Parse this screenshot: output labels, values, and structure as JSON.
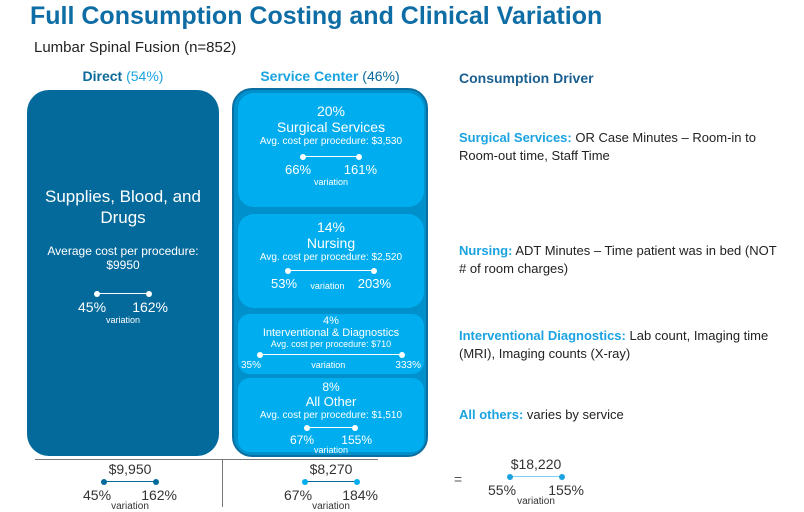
{
  "title": "Full Consumption Costing and Clinical Variation",
  "subtitle": "Lumbar Spinal Fusion (n=852)",
  "colors": {
    "title": "#0f6da5",
    "direct": "#036a9b",
    "service_center": "#00aeef",
    "driver_label": "#1aa3e0"
  },
  "direct": {
    "label": "Direct",
    "pct": "(54%)",
    "category": "Supplies, Blood, and Drugs",
    "cost_label": "Average cost per procedure:",
    "cost": "$9950",
    "low": "45%",
    "high": "162%",
    "variation": "variation"
  },
  "service_center": {
    "label": "Service Center",
    "pct": "(46%)",
    "blocks": [
      {
        "pct": "20%",
        "name": "Surgical Services",
        "cost": "Avg. cost per procedure: $3,530",
        "low": "66%",
        "high": "161%",
        "variation": "variation"
      },
      {
        "pct": "14%",
        "name": "Nursing",
        "cost": "Avg. cost per procedure: $2,520",
        "low": "53%",
        "high": "203%",
        "variation": "variation"
      },
      {
        "pct": "4%",
        "name": "Interventional & Diagnostics",
        "cost": "Avg. cost per procedure: $710",
        "low": "35%",
        "high": "333%",
        "variation": "variation"
      },
      {
        "pct": "8%",
        "name": "All Other",
        "cost": "Avg. cost per procedure: $1,510",
        "low": "67%",
        "high": "155%",
        "variation": "variation"
      }
    ]
  },
  "drivers": {
    "heading": "Consumption Driver",
    "items": [
      {
        "label": "Surgical Services:",
        "text": " OR Case Minutes – Room-in to Room-out time, Staff Time"
      },
      {
        "label": "Nursing:",
        "text": " ADT Minutes – Time patient was in bed (NOT # of room charges)"
      },
      {
        "label": "Interventional Diagnostics:",
        "text": " Lab count, Imaging time (MRI), Imaging counts (X-ray)"
      },
      {
        "label": "All others:",
        "text": " varies by service"
      }
    ]
  },
  "totals": {
    "direct": {
      "amount": "$9,950",
      "low": "45%",
      "high": "162%",
      "variation": "variation"
    },
    "service_center": {
      "amount": "$8,270",
      "low": "67%",
      "high": "184%",
      "variation": "variation"
    },
    "equals": "=",
    "total": {
      "amount": "$18,220",
      "low": "55%",
      "high": "155%",
      "variation": "variation"
    }
  }
}
